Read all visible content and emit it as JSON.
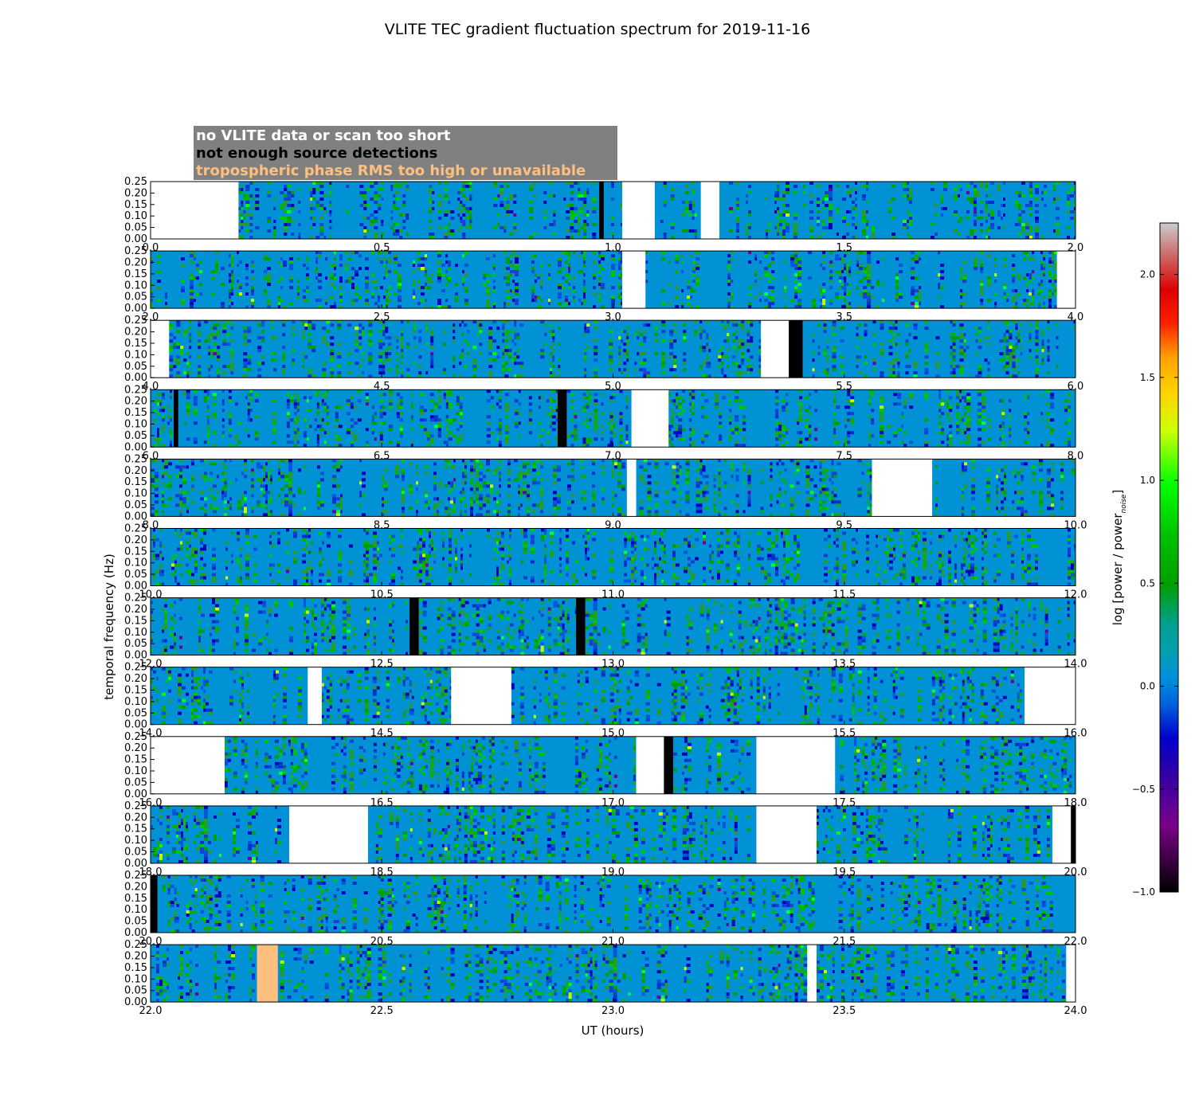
{
  "chart_data": {
    "type": "heatmap",
    "title": "VLITE TEC gradient fluctuation spectrum for 2019-11-16",
    "xlabel": "UT (hours)",
    "ylabel": "temporal frequency (Hz)",
    "ylim": [
      0.0,
      0.25
    ],
    "yticks": [
      "0.00",
      "0.05",
      "0.10",
      "0.15",
      "0.20",
      "0.25"
    ],
    "colorbar": {
      "label": "log [power / power",
      "label_subscript": "noise",
      "label_close": "]",
      "colormap": "nipy_spectral",
      "range": [
        -1.0,
        2.25
      ],
      "ticks": [
        "−1.0",
        "−0.5",
        "0.0",
        "0.5",
        "1.0",
        "1.5",
        "2.0"
      ]
    },
    "legend": {
      "placement": "top-left",
      "items": [
        {
          "label": "no VLITE data or scan too short",
          "text_color": "#ffffff",
          "bg_color": "#808080"
        },
        {
          "label": "not enough source detections",
          "text_color": "#000000",
          "bg_color": "#808080"
        },
        {
          "label": "tropospheric phase RMS too high or unavailable",
          "text_color": "#ffbf7f",
          "bg_color": "#808080"
        }
      ]
    },
    "flag_colors": {
      "no_data": "#ffffff",
      "few_detections": "#000000",
      "tropo_rms": "#ffbf7f",
      "background": "#0092d4"
    },
    "panels": [
      {
        "range": [
          0,
          2
        ],
        "xticks": [
          "0.0",
          "0.5",
          "1.0",
          "1.5",
          "2.0"
        ],
        "no_data": [
          [
            0.0,
            0.19
          ],
          [
            1.02,
            1.09
          ],
          [
            1.19,
            1.23
          ]
        ],
        "few_detections": [
          [
            0.97,
            0.98
          ]
        ],
        "tropo_rms": [],
        "active": [
          [
            0.19,
            0.97
          ],
          [
            0.98,
            1.02
          ],
          [
            1.09,
            1.19
          ],
          [
            1.23,
            2.0
          ]
        ]
      },
      {
        "range": [
          2,
          4
        ],
        "xticks": [
          "2.0",
          "2.5",
          "3.0",
          "3.5",
          "4.0"
        ],
        "no_data": [
          [
            3.02,
            3.07
          ],
          [
            3.96,
            4.0
          ]
        ],
        "few_detections": [],
        "tropo_rms": [],
        "active": [
          [
            2.0,
            3.02
          ],
          [
            3.07,
            3.96
          ]
        ]
      },
      {
        "range": [
          4,
          6
        ],
        "xticks": [
          "4.0",
          "4.5",
          "5.0",
          "5.5",
          "6.0"
        ],
        "no_data": [
          [
            4.0,
            4.04
          ],
          [
            5.32,
            5.38
          ]
        ],
        "few_detections": [
          [
            5.38,
            5.41
          ]
        ],
        "tropo_rms": [],
        "active": [
          [
            4.04,
            5.32
          ],
          [
            5.41,
            6.0
          ]
        ]
      },
      {
        "range": [
          6,
          8
        ],
        "xticks": [
          "6.0",
          "6.5",
          "7.0",
          "7.5",
          "8.0"
        ],
        "no_data": [
          [
            7.04,
            7.12
          ]
        ],
        "few_detections": [
          [
            6.05,
            6.06
          ],
          [
            6.88,
            6.9
          ]
        ],
        "tropo_rms": [],
        "active": [
          [
            6.0,
            6.05
          ],
          [
            6.06,
            6.88
          ],
          [
            6.9,
            7.04
          ],
          [
            7.12,
            8.0
          ]
        ]
      },
      {
        "range": [
          8,
          10
        ],
        "xticks": [
          "8.0",
          "8.5",
          "9.0",
          "9.5",
          "10.0"
        ],
        "no_data": [
          [
            9.03,
            9.05
          ],
          [
            9.56,
            9.69
          ]
        ],
        "few_detections": [],
        "tropo_rms": [],
        "active": [
          [
            8.0,
            9.03
          ],
          [
            9.05,
            9.56
          ],
          [
            9.69,
            10.0
          ]
        ]
      },
      {
        "range": [
          10,
          12
        ],
        "xticks": [
          "10.0",
          "10.5",
          "11.0",
          "11.5",
          "12.0"
        ],
        "no_data": [],
        "few_detections": [],
        "tropo_rms": [],
        "active": [
          [
            10.0,
            12.0
          ]
        ]
      },
      {
        "range": [
          12,
          14
        ],
        "xticks": [
          "12.0",
          "12.5",
          "13.0",
          "13.5",
          "14.0"
        ],
        "no_data": [],
        "few_detections": [
          [
            12.56,
            12.58
          ],
          [
            12.92,
            12.94
          ]
        ],
        "tropo_rms": [],
        "active": [
          [
            12.0,
            12.56
          ],
          [
            12.58,
            12.92
          ],
          [
            12.94,
            14.0
          ]
        ]
      },
      {
        "range": [
          14,
          16
        ],
        "xticks": [
          "14.0",
          "14.5",
          "15.0",
          "15.5",
          "16.0"
        ],
        "no_data": [
          [
            14.34,
            14.37
          ],
          [
            14.65,
            14.78
          ],
          [
            15.89,
            16.0
          ]
        ],
        "few_detections": [],
        "tropo_rms": [],
        "active": [
          [
            14.0,
            14.34
          ],
          [
            14.37,
            14.65
          ],
          [
            14.78,
            15.89
          ]
        ]
      },
      {
        "range": [
          16,
          18
        ],
        "xticks": [
          "16.0",
          "16.5",
          "17.0",
          "17.5",
          "18.0"
        ],
        "no_data": [
          [
            16.0,
            16.16
          ],
          [
            17.05,
            17.11
          ],
          [
            17.31,
            17.48
          ]
        ],
        "few_detections": [
          [
            17.11,
            17.13
          ]
        ],
        "tropo_rms": [],
        "active": [
          [
            16.16,
            17.05
          ],
          [
            17.13,
            17.31
          ],
          [
            17.48,
            18.0
          ]
        ]
      },
      {
        "range": [
          18,
          20
        ],
        "xticks": [
          "18.0",
          "18.5",
          "19.0",
          "19.5",
          "20.0"
        ],
        "no_data": [
          [
            18.3,
            18.47
          ],
          [
            19.31,
            19.44
          ],
          [
            19.95,
            19.99
          ]
        ],
        "few_detections": [
          [
            19.99,
            20.0
          ]
        ],
        "tropo_rms": [],
        "active": [
          [
            18.0,
            18.3
          ],
          [
            18.47,
            19.31
          ],
          [
            19.44,
            19.95
          ]
        ]
      },
      {
        "range": [
          20,
          22
        ],
        "xticks": [
          "20.0",
          "20.5",
          "21.0",
          "21.5",
          "22.0"
        ],
        "no_data": [],
        "few_detections": [
          [
            20.0,
            20.015
          ]
        ],
        "tropo_rms": [],
        "active": [
          [
            20.015,
            22.0
          ]
        ]
      },
      {
        "range": [
          22,
          24
        ],
        "xticks": [
          "22.0",
          "22.5",
          "23.0",
          "23.5",
          "24.0"
        ],
        "no_data": [
          [
            23.42,
            23.44
          ],
          [
            23.98,
            24.0
          ]
        ],
        "few_detections": [],
        "tropo_rms": [
          [
            22.23,
            22.275
          ]
        ],
        "active": [
          [
            22.0,
            22.23
          ],
          [
            22.275,
            23.42
          ],
          [
            23.44,
            23.98
          ]
        ]
      }
    ]
  }
}
